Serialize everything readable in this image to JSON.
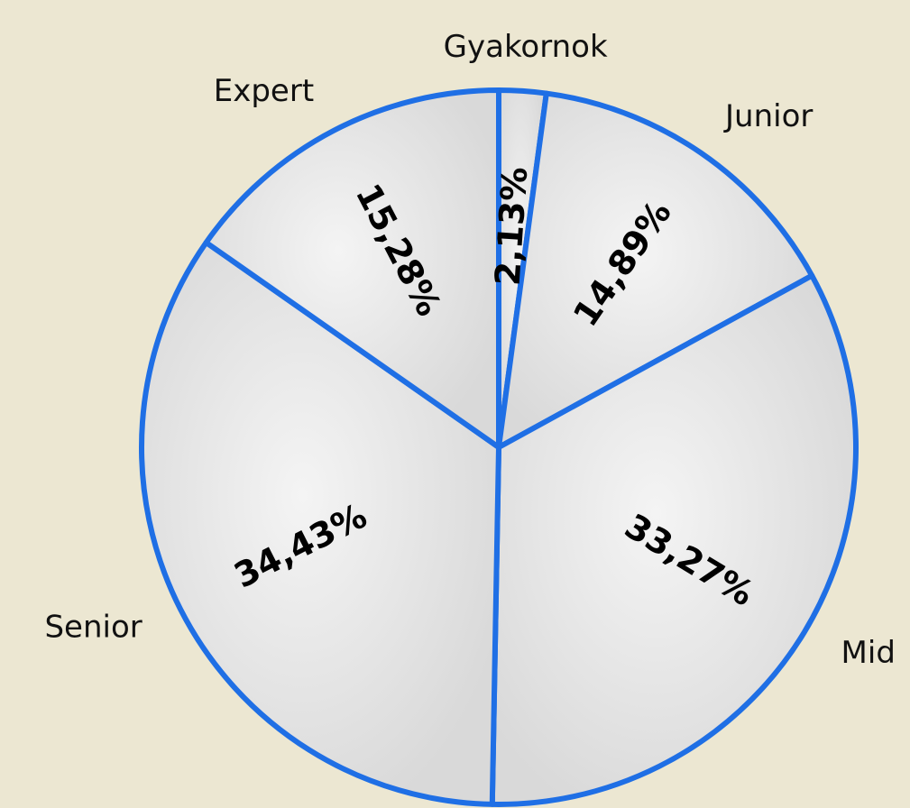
{
  "chart_data": {
    "type": "pie",
    "categories": [
      "Gyakornok",
      "Junior",
      "Mid",
      "Senior",
      "Expert"
    ],
    "values": [
      2.13,
      14.89,
      33.27,
      34.43,
      15.28
    ],
    "value_labels": [
      "2,13%",
      "14,89%",
      "33,27%",
      "34,43%",
      "15,28%"
    ],
    "color": "#1f6fe5"
  }
}
